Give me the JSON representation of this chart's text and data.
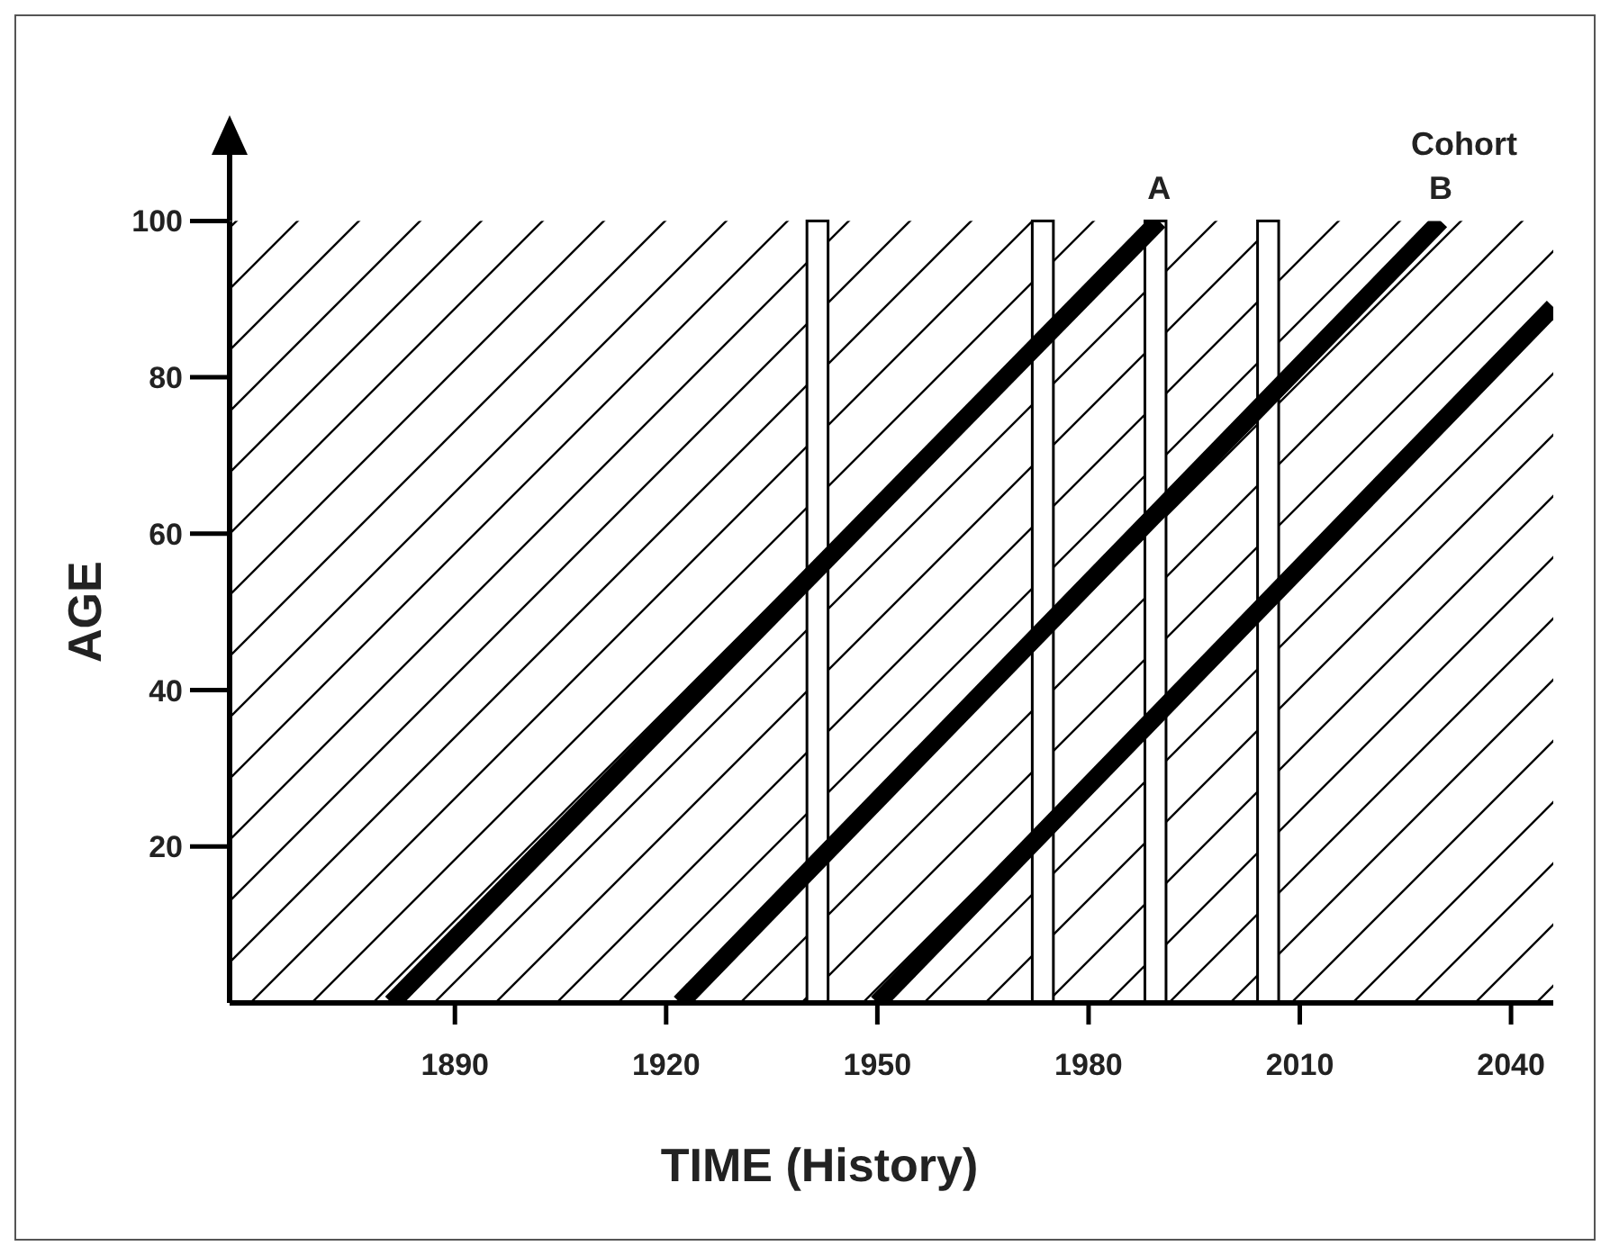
{
  "chart_data": {
    "type": "line",
    "xlabel": "TIME (History)",
    "ylabel": "AGE",
    "xlim": [
      1858,
      2046
    ],
    "ylim": [
      0,
      100
    ],
    "xticks": [
      1890,
      1920,
      1950,
      1980,
      2010,
      2040
    ],
    "yticks": [
      20,
      40,
      60,
      80,
      100
    ],
    "grid": false,
    "marker": "none",
    "line_style": "solid",
    "series": [
      {
        "color": "#000000",
        "x": [
          1881,
          1990
        ],
        "values": [
          0,
          100
        ]
      },
      {
        "color": "#000000",
        "x": [
          1922,
          2030
        ],
        "values": [
          0,
          100
        ]
      },
      {
        "color": "#000000",
        "x": [
          1950,
          2046
        ],
        "values": [
          0,
          89
        ]
      }
    ],
    "bands": [
      {
        "axis": "x",
        "from": 1940,
        "to": 1943,
        "color": "#ffffff"
      },
      {
        "axis": "x",
        "from": 1972,
        "to": 1975,
        "color": "#ffffff"
      },
      {
        "axis": "x",
        "from": 1988,
        "to": 1991,
        "color": "#ffffff"
      },
      {
        "axis": "x",
        "from": 2004,
        "to": 2007,
        "color": "#ffffff"
      }
    ],
    "annotations": [
      "Cohort",
      {
        "text": "A",
        "x": 1990,
        "y": 100
      },
      {
        "text": "B",
        "x": 2030,
        "y": 100
      }
    ]
  }
}
